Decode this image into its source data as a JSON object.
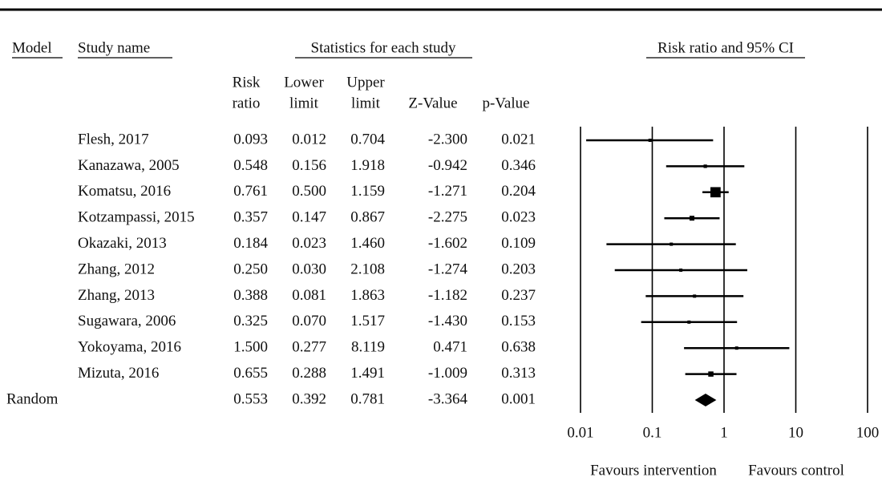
{
  "chart_data": {
    "type": "forest",
    "headers": {
      "model": "Model",
      "study": "Study name",
      "stats": "Statistics for each study",
      "plot": "Risk ratio and 95% CI"
    },
    "model": [
      null,
      null,
      null,
      null,
      null,
      null,
      null,
      null,
      null,
      null,
      "Random"
    ],
    "categories": [
      "Flesh, 2017",
      "Kanazawa, 2005",
      "Komatsu, 2016",
      "Kotzampassi, 2015",
      "Okazaki, 2013",
      "Zhang, 2012",
      "Zhang, 2013",
      "Sugawara, 2006",
      "Yokoyama, 2016",
      "Mizuta, 2016",
      null
    ],
    "columns": [
      {
        "name": [
          "Risk",
          "ratio"
        ],
        "values": [
          0.093,
          0.548,
          0.761,
          0.357,
          0.184,
          0.25,
          0.388,
          0.325,
          1.5,
          0.655,
          0.553
        ],
        "value_labels": [
          "0.093",
          "0.548",
          "0.761",
          "0.357",
          "0.184",
          "0.250",
          "0.388",
          "0.325",
          "1.500",
          "0.655",
          "0.553"
        ]
      },
      {
        "name": [
          "Lower",
          "limit"
        ],
        "values": [
          0.012,
          0.156,
          0.5,
          0.147,
          0.023,
          0.03,
          0.081,
          0.07,
          0.277,
          0.288,
          0.392
        ],
        "value_labels": [
          "0.012",
          "0.156",
          "0.500",
          "0.147",
          "0.023",
          "0.030",
          "0.081",
          "0.070",
          "0.277",
          "0.288",
          "0.392"
        ]
      },
      {
        "name": [
          "Upper",
          "limit"
        ],
        "values": [
          0.704,
          1.918,
          1.159,
          0.867,
          1.46,
          2.108,
          1.863,
          1.517,
          8.119,
          1.491,
          0.781
        ],
        "value_labels": [
          "0.704",
          "1.918",
          "1.159",
          "0.867",
          "1.460",
          "2.108",
          "1.863",
          "1.517",
          "8.119",
          "1.491",
          "0.781"
        ]
      },
      {
        "name": [
          "Z-Value"
        ],
        "values": [
          -2.3,
          -0.942,
          -1.271,
          -2.275,
          -1.602,
          -1.274,
          -1.182,
          -1.43,
          0.471,
          -1.009,
          -3.364
        ],
        "value_labels": [
          "-2.300",
          "-0.942",
          "-1.271",
          "-2.275",
          "-1.602",
          "-1.274",
          "-1.182",
          "-1.430",
          "0.471",
          "-1.009",
          "-3.364"
        ]
      },
      {
        "name": [
          "p-Value"
        ],
        "values": [
          0.021,
          0.346,
          0.204,
          0.023,
          0.109,
          0.203,
          0.237,
          0.153,
          0.638,
          0.313,
          0.001
        ],
        "value_labels": [
          "0.021",
          "0.346",
          "0.204",
          "0.023",
          "0.109",
          "0.203",
          "0.237",
          "0.153",
          "0.638",
          "0.313",
          "0.001"
        ]
      }
    ],
    "xlim": [
      0.01,
      100
    ],
    "xticks": [
      0.01,
      0.1,
      1,
      10,
      100
    ],
    "log_scale": true,
    "grid": true,
    "color": "#000000",
    "favours": [
      "Favours intervention",
      "Favours control"
    ]
  }
}
